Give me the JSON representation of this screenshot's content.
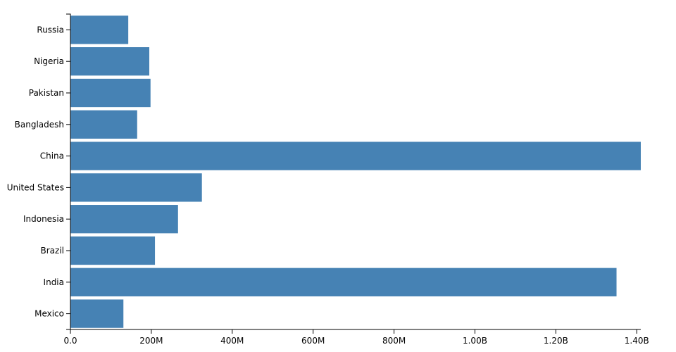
{
  "chart_data": {
    "type": "bar",
    "orientation": "horizontal",
    "categories": [
      "Russia",
      "Nigeria",
      "Pakistan",
      "Bangladesh",
      "China",
      "United States",
      "Indonesia",
      "Brazil",
      "India",
      "Mexico"
    ],
    "values": [
      143000000,
      195000000,
      198000000,
      165000000,
      1410000000,
      325000000,
      266000000,
      209000000,
      1350000000,
      131000000
    ],
    "color": "#4682b4",
    "xlim": [
      0,
      1410000000
    ],
    "xticks": [
      {
        "value": 0,
        "label": "0.0"
      },
      {
        "value": 200000000,
        "label": "200M"
      },
      {
        "value": 400000000,
        "label": "400M"
      },
      {
        "value": 600000000,
        "label": "600M"
      },
      {
        "value": 800000000,
        "label": "800M"
      },
      {
        "value": 1000000000,
        "label": "1.00B"
      },
      {
        "value": 1200000000,
        "label": "1.20B"
      },
      {
        "value": 1400000000,
        "label": "1.40B"
      }
    ],
    "grid": false
  }
}
